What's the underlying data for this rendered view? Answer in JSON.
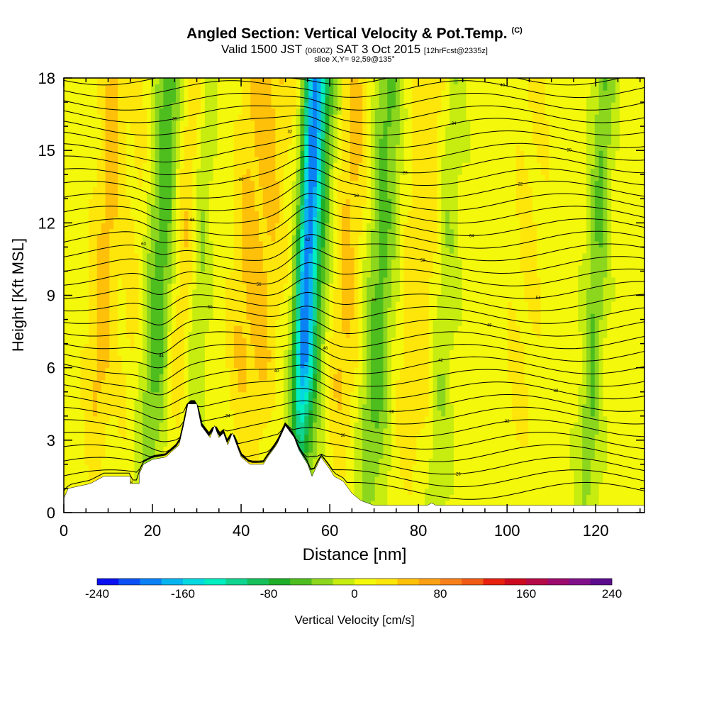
{
  "header": {
    "title": "Angled Section: Vertical Velocity & Pot.Temp.",
    "copyright": "(C)",
    "valid_a": "Valid 1500 JST",
    "valid_utc": "(0600Z)",
    "valid_b": "SAT 3 Oct 2015",
    "forecast": "[12hrFcst@2335z]",
    "slice": "slice X,Y= 92,59@135°"
  },
  "chart_data": {
    "type": "heatmap",
    "title": "Angled Section: Vertical Velocity & Pot.Temp.",
    "xlabel": "Distance [nm]",
    "ylabel": "Height [Kft MSL]",
    "xlim": [
      0,
      131
    ],
    "ylim": [
      0,
      18
    ],
    "x_ticks": [
      "0",
      "20",
      "40",
      "60",
      "80",
      "100",
      "120"
    ],
    "y_ticks": [
      "0",
      "3",
      "6",
      "9",
      "12",
      "15",
      "18"
    ],
    "colorbar": {
      "label": "Vertical Velocity [cm/s]",
      "range": [
        -240,
        240
      ],
      "ticks": [
        "-240",
        "-160",
        "-80",
        "0",
        "80",
        "160",
        "240"
      ],
      "colors": [
        "#0a10f0",
        "#0a50f5",
        "#0a82f5",
        "#08b4f0",
        "#06d8e0",
        "#00eec0",
        "#10d490",
        "#15bf5a",
        "#1eae28",
        "#4ebd1e",
        "#8cd61e",
        "#c6ec10",
        "#f4f80a",
        "#ffe60a",
        "#ffc00a",
        "#fba014",
        "#f7801a",
        "#f05a14",
        "#e8200e",
        "#cc0a1e",
        "#b40a46",
        "#9c0a6e",
        "#80108a",
        "#5a0a8c"
      ]
    },
    "updraft_bands_nm": [
      {
        "x": 9,
        "w": 2.2,
        "v": 40
      },
      {
        "x": 16,
        "w": 2.0,
        "v": 20
      },
      {
        "x": 27,
        "w": 3.0,
        "v": 55
      },
      {
        "x": 40,
        "w": 2.0,
        "v": 25
      },
      {
        "x": 45,
        "w": 3.0,
        "v": 35
      },
      {
        "x": 62,
        "w": 4.0,
        "v": 45
      },
      {
        "x": 80,
        "w": 3.5,
        "v": 25
      },
      {
        "x": 104,
        "w": 3.0,
        "v": 15
      }
    ],
    "downdraft_bands_nm": [
      {
        "x": 22,
        "w": 2.8,
        "v": -70
      },
      {
        "x": 30,
        "w": 1.8,
        "v": -55
      },
      {
        "x": 54.5,
        "w": 1.6,
        "v": -170
      },
      {
        "x": 57.5,
        "w": 2.6,
        "v": -75
      },
      {
        "x": 71,
        "w": 2.5,
        "v": -60
      },
      {
        "x": 86,
        "w": 1.8,
        "v": -30
      },
      {
        "x": 120,
        "w": 1.6,
        "v": -50
      }
    ],
    "terrain_kft": [
      [
        0,
        0.6
      ],
      [
        1,
        1.0
      ],
      [
        6,
        1.2
      ],
      [
        9,
        1.5
      ],
      [
        15,
        1.5
      ],
      [
        15,
        1.2
      ],
      [
        17,
        1.2
      ],
      [
        17,
        1.6
      ],
      [
        18,
        2.0
      ],
      [
        20,
        2.2
      ],
      [
        23,
        2.3
      ],
      [
        26,
        2.8
      ],
      [
        27,
        3.6
      ],
      [
        28,
        4.5
      ],
      [
        30,
        4.5
      ],
      [
        31,
        3.6
      ],
      [
        33,
        3.1
      ],
      [
        34,
        3.6
      ],
      [
        35,
        3.1
      ],
      [
        36,
        3.3
      ],
      [
        37,
        2.8
      ],
      [
        38,
        3.3
      ],
      [
        40,
        2.3
      ],
      [
        42,
        2.0
      ],
      [
        45,
        2.0
      ],
      [
        46,
        2.3
      ],
      [
        48,
        2.8
      ],
      [
        50,
        3.6
      ],
      [
        52,
        3.1
      ],
      [
        53,
        2.6
      ],
      [
        55,
        2.0
      ],
      [
        56,
        1.5
      ],
      [
        58,
        2.3
      ],
      [
        60,
        1.8
      ],
      [
        61,
        1.5
      ],
      [
        63,
        1.3
      ],
      [
        65,
        0.8
      ],
      [
        67,
        0.5
      ],
      [
        70,
        0.3
      ],
      [
        72,
        0.3
      ],
      [
        82,
        0.3
      ],
      [
        83,
        0.4
      ],
      [
        84,
        0.3
      ],
      [
        131,
        0.3
      ]
    ],
    "isentrope_labels": [
      "18",
      "22",
      "26",
      "28",
      "30",
      "32",
      "34",
      "36",
      "38",
      "40",
      "42",
      "44",
      "46",
      "48",
      "50",
      "52",
      "54",
      "56",
      "58",
      "60",
      "62",
      "64",
      "66"
    ]
  }
}
